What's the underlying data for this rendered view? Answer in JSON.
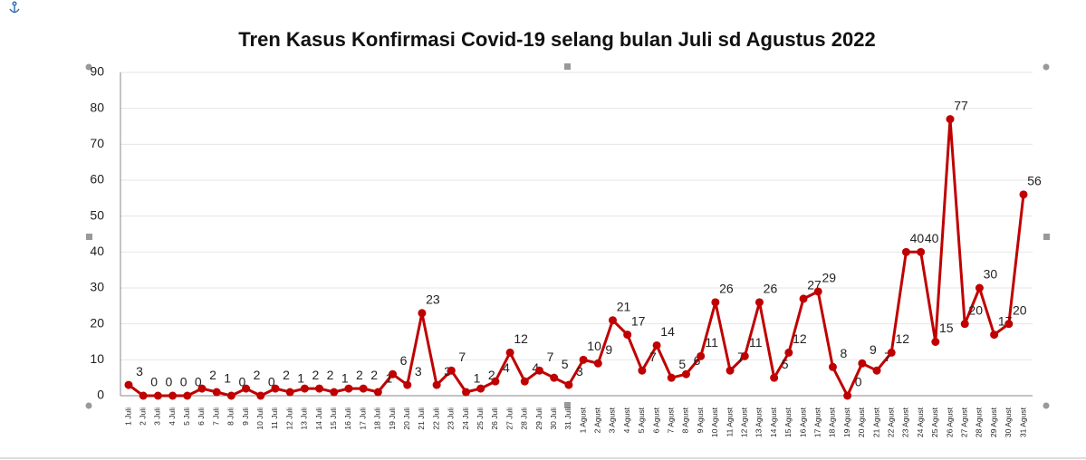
{
  "chart_data": {
    "type": "line",
    "title": "Tren Kasus Konfirmasi Covid-19 selang bulan Juli  sd Agustus 2022",
    "categories": [
      "1 Juli",
      "2 Juli",
      "3 Juli",
      "4 Juli",
      "5 Juli",
      "6 Juli",
      "7 Juli",
      "8 Juli",
      "9 Juli",
      "10 Juli",
      "11 Juli",
      "12 Juli",
      "13 Juli",
      "14 Juli",
      "15 Juli",
      "16 Juli",
      "17 Juli",
      "18 Juli",
      "19 Juli",
      "20 Juli",
      "21 Juli",
      "22 Juli",
      "23 Juli",
      "24 Juli",
      "25 Juli",
      "26 Juli",
      "27 Juli",
      "28 Juli",
      "29 Juli",
      "30 Juli",
      "31 Juli",
      "1 Agust",
      "2 Agust",
      "3 Agust",
      "4 Agust",
      "5 Agust",
      "6 Agust",
      "7 Agust",
      "8 Agust",
      "9 Agust",
      "10 Agust",
      "11 Agust",
      "12 Agust",
      "13 Agust",
      "14 Agust",
      "15 Agust",
      "16 Agust",
      "17 Agust",
      "18 Agust",
      "19 Agust",
      "20 Agust",
      "21 Agust",
      "22 Agust",
      "23 Agust",
      "24 Agust",
      "25 Agust",
      "26 Agust",
      "27 Agust",
      "28 Agust",
      "29 Agust",
      "30 Agust",
      "31 Agust"
    ],
    "values": [
      3,
      0,
      0,
      0,
      0,
      2,
      1,
      0,
      2,
      0,
      2,
      1,
      2,
      2,
      1,
      2,
      2,
      1,
      6,
      3,
      23,
      3,
      7,
      1,
      2,
      4,
      12,
      4,
      7,
      5,
      3,
      10,
      9,
      21,
      17,
      7,
      14,
      5,
      6,
      11,
      26,
      7,
      11,
      26,
      5,
      12,
      27,
      29,
      8,
      0,
      9,
      7,
      12,
      40,
      40,
      15,
      77,
      20,
      30,
      17,
      20,
      56
    ],
    "color": "#c00000",
    "ylim": [
      0,
      90
    ],
    "yticks": [
      0,
      10,
      20,
      30,
      40,
      50,
      60,
      70,
      80,
      90
    ],
    "grid": true
  }
}
